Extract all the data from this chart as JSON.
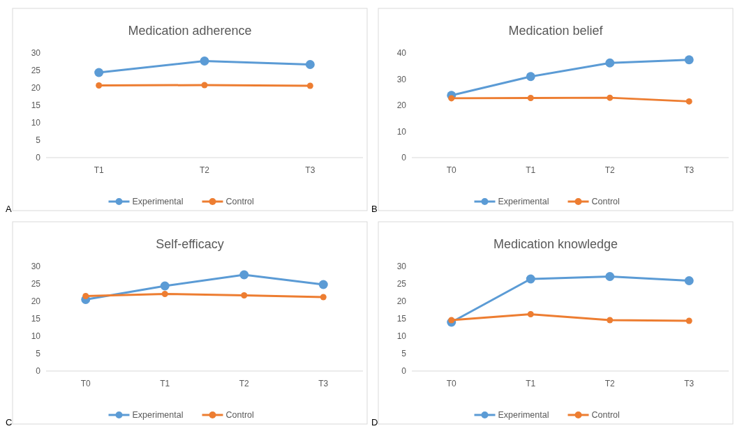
{
  "chart_data": [
    {
      "type": "line",
      "title": "Medication adherence",
      "categories": [
        "T1",
        "T2",
        "T3"
      ],
      "ylim": [
        0,
        30
      ],
      "yticks": [
        0,
        5,
        10,
        15,
        20,
        25,
        30
      ],
      "grid": false,
      "legend": "bottom",
      "marker": "circle",
      "annotations": [
        "A"
      ],
      "series": [
        {
          "name": "Experimental",
          "color": "#5b9bd5",
          "values": [
            24.4,
            27.7,
            26.7
          ]
        },
        {
          "name": "Control",
          "color": "#ed7d31",
          "values": [
            20.7,
            20.8,
            20.6
          ]
        }
      ]
    },
    {
      "type": "line",
      "title": "Medication belief",
      "categories": [
        "T0",
        "T1",
        "T2",
        "T3"
      ],
      "ylim": [
        0,
        40
      ],
      "yticks": [
        0,
        10,
        20,
        30,
        40
      ],
      "grid": false,
      "legend": "bottom",
      "marker": "circle",
      "annotations": [
        "B"
      ],
      "series": [
        {
          "name": "Experimental",
          "color": "#5b9bd5",
          "values": [
            23.8,
            31.0,
            36.2,
            37.4
          ]
        },
        {
          "name": "Control",
          "color": "#ed7d31",
          "values": [
            22.7,
            22.8,
            22.9,
            21.5
          ]
        }
      ]
    },
    {
      "type": "line",
      "title": "Self-efficacy",
      "categories": [
        "T0",
        "T1",
        "T2",
        "T3"
      ],
      "ylim": [
        0,
        30
      ],
      "yticks": [
        0,
        5,
        10,
        15,
        20,
        25,
        30
      ],
      "grid": false,
      "legend": "bottom",
      "marker": "circle",
      "annotations": [
        "C"
      ],
      "series": [
        {
          "name": "Experimental",
          "color": "#5b9bd5",
          "values": [
            20.5,
            24.4,
            27.6,
            24.8
          ]
        },
        {
          "name": "Control",
          "color": "#ed7d31",
          "values": [
            21.5,
            22.1,
            21.7,
            21.2
          ]
        }
      ]
    },
    {
      "type": "line",
      "title": "Medication knowledge",
      "categories": [
        "T0",
        "T1",
        "T2",
        "T3"
      ],
      "ylim": [
        0,
        30
      ],
      "yticks": [
        0,
        5,
        10,
        15,
        20,
        25,
        30
      ],
      "grid": false,
      "legend": "bottom",
      "marker": "circle",
      "annotations": [
        "D"
      ],
      "series": [
        {
          "name": "Experimental",
          "color": "#5b9bd5",
          "values": [
            14.0,
            26.4,
            27.1,
            25.9
          ]
        },
        {
          "name": "Control",
          "color": "#ed7d31",
          "values": [
            14.6,
            16.3,
            14.6,
            14.4
          ]
        }
      ]
    }
  ]
}
